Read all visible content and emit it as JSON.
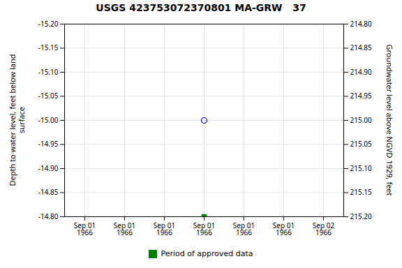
{
  "chart_data": {
    "type": "scatter",
    "title": "USGS 423753072370801 MA-GRW   37",
    "ylabel": "Depth to water level, feet below land\nsurface",
    "y2label": "Groundwater level above NGVD 1929, feet",
    "categories": [
      "Sep 01\n1966",
      "Sep 01\n1966",
      "Sep 01\n1966",
      "Sep 01\n1966",
      "Sep 01\n1966",
      "Sep 01\n1966",
      "Sep 02\n1966"
    ],
    "series": [
      {
        "color": "#0000cd",
        "marker": "circle",
        "values": [
          null,
          null,
          null,
          -15.0,
          null,
          null,
          null
        ]
      },
      {
        "name": "Period of approved data",
        "color": "#008000",
        "marker": "square",
        "values": [
          null,
          null,
          null,
          -14.8,
          null,
          null,
          null
        ]
      }
    ],
    "ylim": [
      -14.8,
      -15.2
    ],
    "yticks": [
      {
        "value": -15.2,
        "label": "-15.20"
      },
      -15.15,
      {
        "value": -15.1,
        "label": "-15.10"
      },
      -15.05,
      {
        "value": -15.0,
        "label": "-15.00"
      },
      -14.95,
      {
        "value": -14.9,
        "label": "-14.90"
      },
      -14.85,
      {
        "value": -14.8,
        "label": "-14.80"
      }
    ],
    "y2lim": [
      215.2,
      214.8
    ],
    "y2ticks": [
      {
        "value": 215.2,
        "label": "215.20"
      },
      215.15,
      {
        "value": 215.1,
        "label": "215.10"
      },
      215.05,
      {
        "value": 215.0,
        "label": "215.00"
      },
      214.95,
      {
        "value": 214.9,
        "label": "214.90"
      },
      214.85,
      {
        "value": 214.8,
        "label": "214.80"
      }
    ],
    "grid": true,
    "legend": "bottom"
  }
}
